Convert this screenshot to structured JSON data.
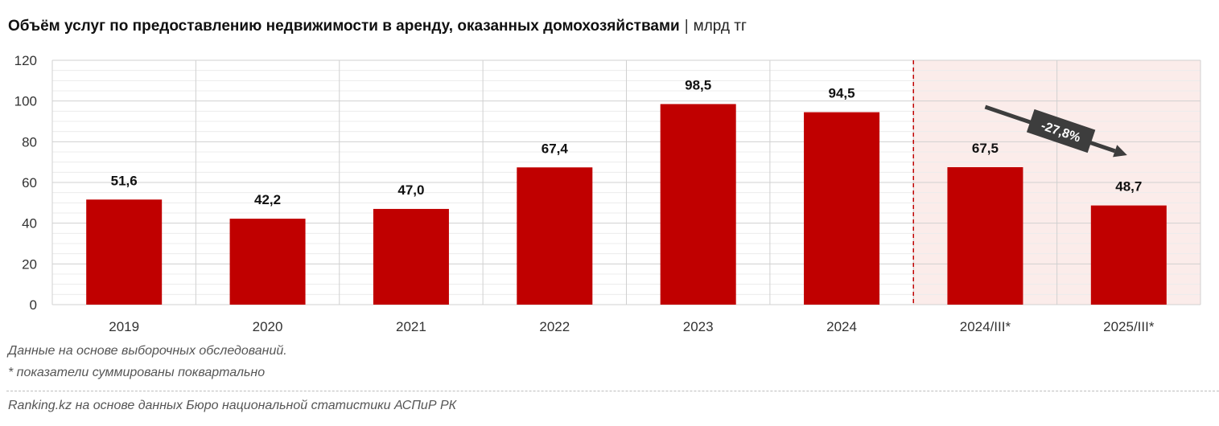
{
  "title": "Объём услуг по предоставлению недвижимости в аренду, оказанных домохозяйствами",
  "title_separator": "|",
  "unit": "млрд тг",
  "notes": {
    "line1": "Данные на основе выборочных обследований.",
    "line2": "* показатели суммированы поквартально"
  },
  "source": "Ranking.kz на основе данных Бюро национальной статистики АСПиР РК",
  "colors": {
    "bar": "#c00000",
    "highlight_bg": "#fbecea",
    "dashed_line": "#c00000",
    "arrow": "#3d3d3d",
    "grid": "#d0d0d0"
  },
  "chart_data": {
    "type": "bar",
    "categories": [
      "2019",
      "2020",
      "2021",
      "2022",
      "2023",
      "2024",
      "2024/III*",
      "2025/III*"
    ],
    "values": [
      51.6,
      42.2,
      47.0,
      67.4,
      98.5,
      94.5,
      67.5,
      48.7
    ],
    "value_labels": [
      "51,6",
      "42,2",
      "47,0",
      "67,4",
      "98,5",
      "94,5",
      "67,5",
      "48,7"
    ],
    "yticks": [
      "0",
      "20",
      "40",
      "60",
      "80",
      "100",
      "120"
    ],
    "ylim": [
      0,
      120
    ],
    "highlighted_categories": [
      "2024/III*",
      "2025/III*"
    ],
    "annotation": {
      "text": "-27,8%",
      "from": "2024/III*",
      "to": "2025/III*"
    },
    "xlabel": "",
    "ylabel": "",
    "grid": true
  }
}
